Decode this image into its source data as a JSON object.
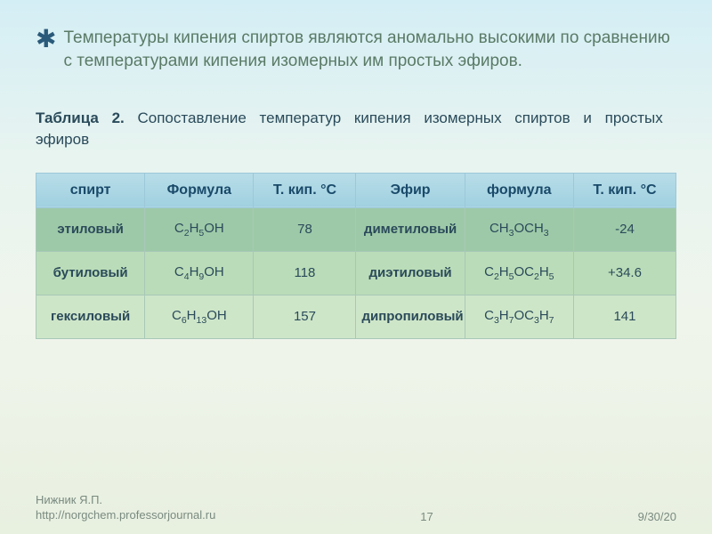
{
  "bullet": {
    "text": "Температуры кипения спиртов являются аномально высокими по  сравнению с температурами кипения изомерных им простых эфиров."
  },
  "caption": {
    "label": "Таблица 2.",
    "text": "Сопоставление температур кипения изомерных спиртов и простых эфиров"
  },
  "table": {
    "headers": {
      "alcohol": "спирт",
      "formula1": "Формула",
      "temp1": "Т. кип. °С",
      "ether": "Эфир",
      "formula2": "формула",
      "temp2": "Т. кип. °С"
    },
    "rows": [
      {
        "alcohol": "этиловый",
        "formula1_html": "C<sub>2</sub>H<sub>5</sub>OH",
        "temp1": "78",
        "ether": "диметиловый",
        "formula2_html": "CH<sub>3</sub>OCH<sub>3</sub>",
        "temp2": "-24"
      },
      {
        "alcohol": "бутиловый",
        "formula1_html": "C<sub>4</sub>H<sub>9</sub>OH",
        "temp1": "118",
        "ether": "диэтиловый",
        "formula2_html": "C<sub>2</sub>H<sub>5</sub>OC<sub>2</sub>H<sub>5</sub>",
        "temp2": "+34.6"
      },
      {
        "alcohol": "гексиловый",
        "formula1_html": "C<sub>6</sub>H<sub>13</sub>OH",
        "temp1": "157",
        "ether": "дипропиловый",
        "formula2_html": "C<sub>3</sub>H<sub>7</sub>OC<sub>3</sub>H<sub>7</sub>",
        "temp2": "141"
      }
    ]
  },
  "footer": {
    "author_line1": "Нижник Я.П.",
    "author_line2": "http://norgchem.professorjournal.ru",
    "page": "17",
    "date": "9/30/20"
  },
  "style": {
    "text_color": "#5a7a66",
    "header_th_bg": "#a0d0e0",
    "row_colors": [
      "#9ec9a8",
      "#badcb8",
      "#cee6c8"
    ],
    "table_border": "#a8c8b8"
  }
}
